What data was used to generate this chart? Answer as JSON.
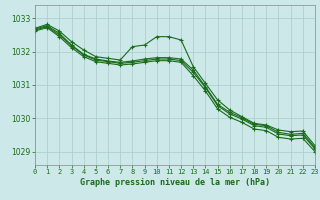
{
  "background_color": "#cce8e8",
  "grid_color": "#aacccc",
  "line_color": "#1a6b1a",
  "text_color": "#1a6b1a",
  "xlabel": "Graphe pression niveau de la mer (hPa)",
  "ylim": [
    1028.6,
    1033.4
  ],
  "xlim": [
    0,
    23
  ],
  "yticks": [
    1029,
    1030,
    1031,
    1032,
    1033
  ],
  "xticks": [
    0,
    1,
    2,
    3,
    4,
    5,
    6,
    7,
    8,
    9,
    10,
    11,
    12,
    13,
    14,
    15,
    16,
    17,
    18,
    19,
    20,
    21,
    22,
    23
  ],
  "series": [
    [
      1032.7,
      1032.82,
      1032.62,
      1032.3,
      1032.05,
      1031.85,
      1031.8,
      1031.75,
      1032.15,
      1032.2,
      1032.45,
      1032.45,
      1032.35,
      1031.55,
      1031.05,
      1030.55,
      1030.25,
      1030.05,
      1029.85,
      1029.8,
      1029.65,
      1029.6,
      1029.62,
      1029.18
    ],
    [
      1032.68,
      1032.78,
      1032.55,
      1032.2,
      1031.92,
      1031.78,
      1031.72,
      1031.68,
      1031.72,
      1031.78,
      1031.82,
      1031.82,
      1031.78,
      1031.45,
      1030.95,
      1030.42,
      1030.18,
      1030.02,
      1029.82,
      1029.78,
      1029.58,
      1029.52,
      1029.55,
      1029.12
    ],
    [
      1032.65,
      1032.75,
      1032.5,
      1032.18,
      1031.9,
      1031.75,
      1031.7,
      1031.65,
      1031.68,
      1031.73,
      1031.78,
      1031.78,
      1031.73,
      1031.38,
      1030.92,
      1030.38,
      1030.13,
      1029.98,
      1029.78,
      1029.73,
      1029.53,
      1029.48,
      1029.5,
      1029.08
    ],
    [
      1032.62,
      1032.72,
      1032.45,
      1032.12,
      1031.85,
      1031.7,
      1031.65,
      1031.6,
      1031.63,
      1031.68,
      1031.73,
      1031.73,
      1031.68,
      1031.28,
      1030.82,
      1030.28,
      1030.03,
      1029.88,
      1029.68,
      1029.63,
      1029.43,
      1029.38,
      1029.4,
      1029.0
    ]
  ]
}
